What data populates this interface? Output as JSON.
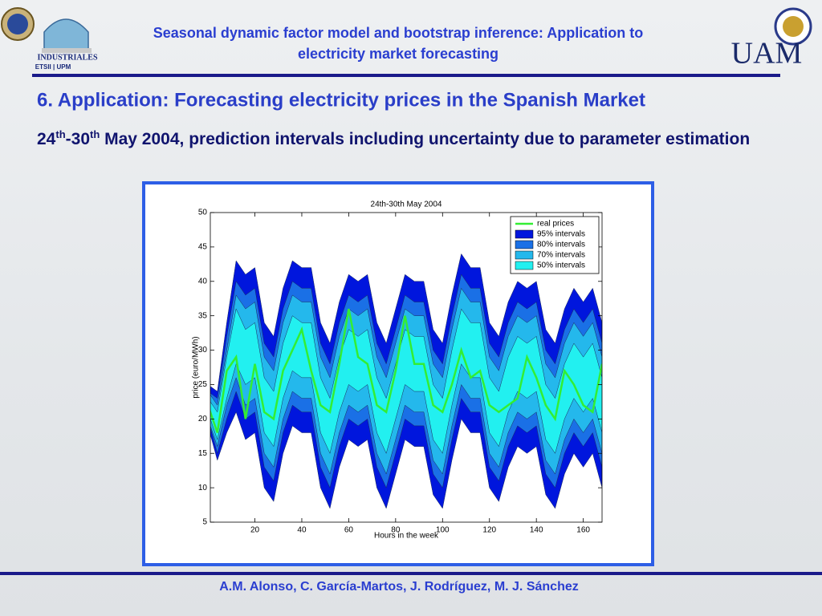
{
  "header": {
    "title_line1": "Seasonal dynamic factor model and bootstrap inference: Application to",
    "title_line2": "electricity market forecasting",
    "logo_left": "INDUSTRIALES",
    "logo_left_sub": "ETSII | UPM",
    "logo_right": "UAM"
  },
  "heading": "6. Application: Forecasting electricity prices in the Spanish Market",
  "subheading": {
    "parts": [
      "24",
      "th",
      "-30",
      "th"
    ],
    "text": " May 2004, prediction intervals including uncertainty due to parameter estimation"
  },
  "footer": "A.M. Alonso, C. García-Martos, J. Rodríguez, M. J. Sánchez",
  "chart_data": {
    "type": "fan",
    "title": "24th-30th May 2004",
    "x_label": "Hours in the week",
    "y_label": "price (euro/MWh)",
    "xlim": [
      1,
      168
    ],
    "ylim": [
      5,
      50
    ],
    "xticks": [
      20,
      40,
      60,
      80,
      100,
      120,
      140,
      160
    ],
    "yticks": [
      5,
      10,
      15,
      20,
      25,
      30,
      35,
      40,
      45,
      50
    ],
    "legend": "upper right",
    "x": [
      0,
      4,
      8,
      12,
      16,
      20,
      24,
      28,
      32,
      36,
      40,
      44,
      48,
      52,
      56,
      60,
      64,
      68,
      72,
      76,
      80,
      84,
      88,
      92,
      96,
      100,
      104,
      108,
      112,
      116,
      120,
      124,
      128,
      132,
      136,
      140,
      144,
      148,
      152,
      156,
      160,
      164,
      168
    ],
    "series": [
      {
        "name": "real prices",
        "color": "#33ee33",
        "values": [
          22,
          18,
          27,
          29,
          20,
          28,
          21,
          20,
          27,
          30,
          33,
          27,
          22,
          21,
          28,
          36,
          29,
          28,
          22,
          21,
          27,
          35,
          28,
          28,
          22,
          21,
          25,
          30,
          26,
          27,
          22,
          21,
          22,
          23,
          29,
          26,
          22,
          20,
          27,
          25,
          22,
          21,
          28
        ]
      },
      {
        "name": "95% intervals",
        "color": "#0016dd",
        "upper": [
          25,
          24,
          34,
          43,
          41,
          42,
          34,
          32,
          39,
          43,
          42,
          42,
          34,
          31,
          37,
          41,
          40,
          41,
          34,
          31,
          36,
          41,
          40,
          40,
          33,
          31,
          38,
          44,
          42,
          42,
          34,
          32,
          37,
          40,
          39,
          40,
          33,
          31,
          36,
          39,
          37,
          39,
          34
        ],
        "lower": [
          19,
          14,
          18,
          21,
          17,
          18,
          10,
          8,
          15,
          19,
          18,
          18,
          10,
          7,
          13,
          17,
          16,
          17,
          10,
          7,
          12,
          17,
          16,
          16,
          9,
          7,
          14,
          20,
          18,
          18,
          10,
          8,
          13,
          16,
          15,
          16,
          9,
          7,
          12,
          15,
          13,
          15,
          10
        ]
      },
      {
        "name": "80% intervals",
        "color": "#1a70e6",
        "upper": [
          24,
          23,
          32,
          40,
          38,
          39,
          31,
          29,
          36,
          40,
          39,
          39,
          31,
          28,
          34,
          38,
          37,
          38,
          31,
          28,
          33,
          38,
          37,
          37,
          30,
          28,
          35,
          41,
          39,
          39,
          31,
          29,
          34,
          37,
          36,
          37,
          30,
          28,
          33,
          36,
          34,
          36,
          31
        ],
        "lower": [
          20,
          15,
          20,
          24,
          20,
          21,
          13,
          11,
          18,
          22,
          21,
          21,
          13,
          10,
          16,
          20,
          19,
          20,
          13,
          10,
          15,
          20,
          19,
          19,
          12,
          10,
          17,
          23,
          21,
          21,
          13,
          11,
          16,
          19,
          18,
          19,
          12,
          10,
          15,
          18,
          16,
          18,
          13
        ]
      },
      {
        "name": "70% intervals",
        "color": "#24b8ec",
        "upper": [
          24,
          22,
          30,
          38,
          36,
          37,
          29,
          27,
          34,
          38,
          37,
          37,
          29,
          26,
          32,
          36,
          35,
          36,
          29,
          26,
          31,
          36,
          35,
          35,
          28,
          26,
          33,
          39,
          37,
          37,
          29,
          27,
          32,
          35,
          34,
          35,
          28,
          26,
          31,
          34,
          32,
          34,
          29
        ],
        "lower": [
          20,
          16,
          22,
          26,
          22,
          23,
          15,
          13,
          20,
          24,
          23,
          23,
          15,
          12,
          18,
          22,
          21,
          22,
          15,
          12,
          17,
          22,
          21,
          21,
          14,
          12,
          19,
          25,
          23,
          23,
          15,
          13,
          18,
          21,
          20,
          21,
          14,
          12,
          17,
          20,
          18,
          20,
          15
        ]
      },
      {
        "name": "50% intervals",
        "color": "#22f0f0",
        "upper": [
          23,
          21,
          29,
          36,
          33,
          34,
          26,
          24,
          31,
          35,
          34,
          34,
          26,
          23,
          29,
          33,
          32,
          33,
          26,
          23,
          28,
          33,
          32,
          32,
          25,
          23,
          30,
          36,
          34,
          34,
          26,
          24,
          29,
          32,
          31,
          32,
          25,
          23,
          28,
          31,
          29,
          31,
          26
        ],
        "lower": [
          21,
          17,
          23,
          28,
          25,
          26,
          18,
          16,
          23,
          27,
          26,
          26,
          18,
          15,
          21,
          25,
          24,
          25,
          18,
          15,
          20,
          25,
          24,
          24,
          17,
          15,
          22,
          28,
          26,
          26,
          18,
          16,
          21,
          24,
          23,
          24,
          17,
          15,
          20,
          23,
          21,
          23,
          18
        ]
      }
    ]
  }
}
